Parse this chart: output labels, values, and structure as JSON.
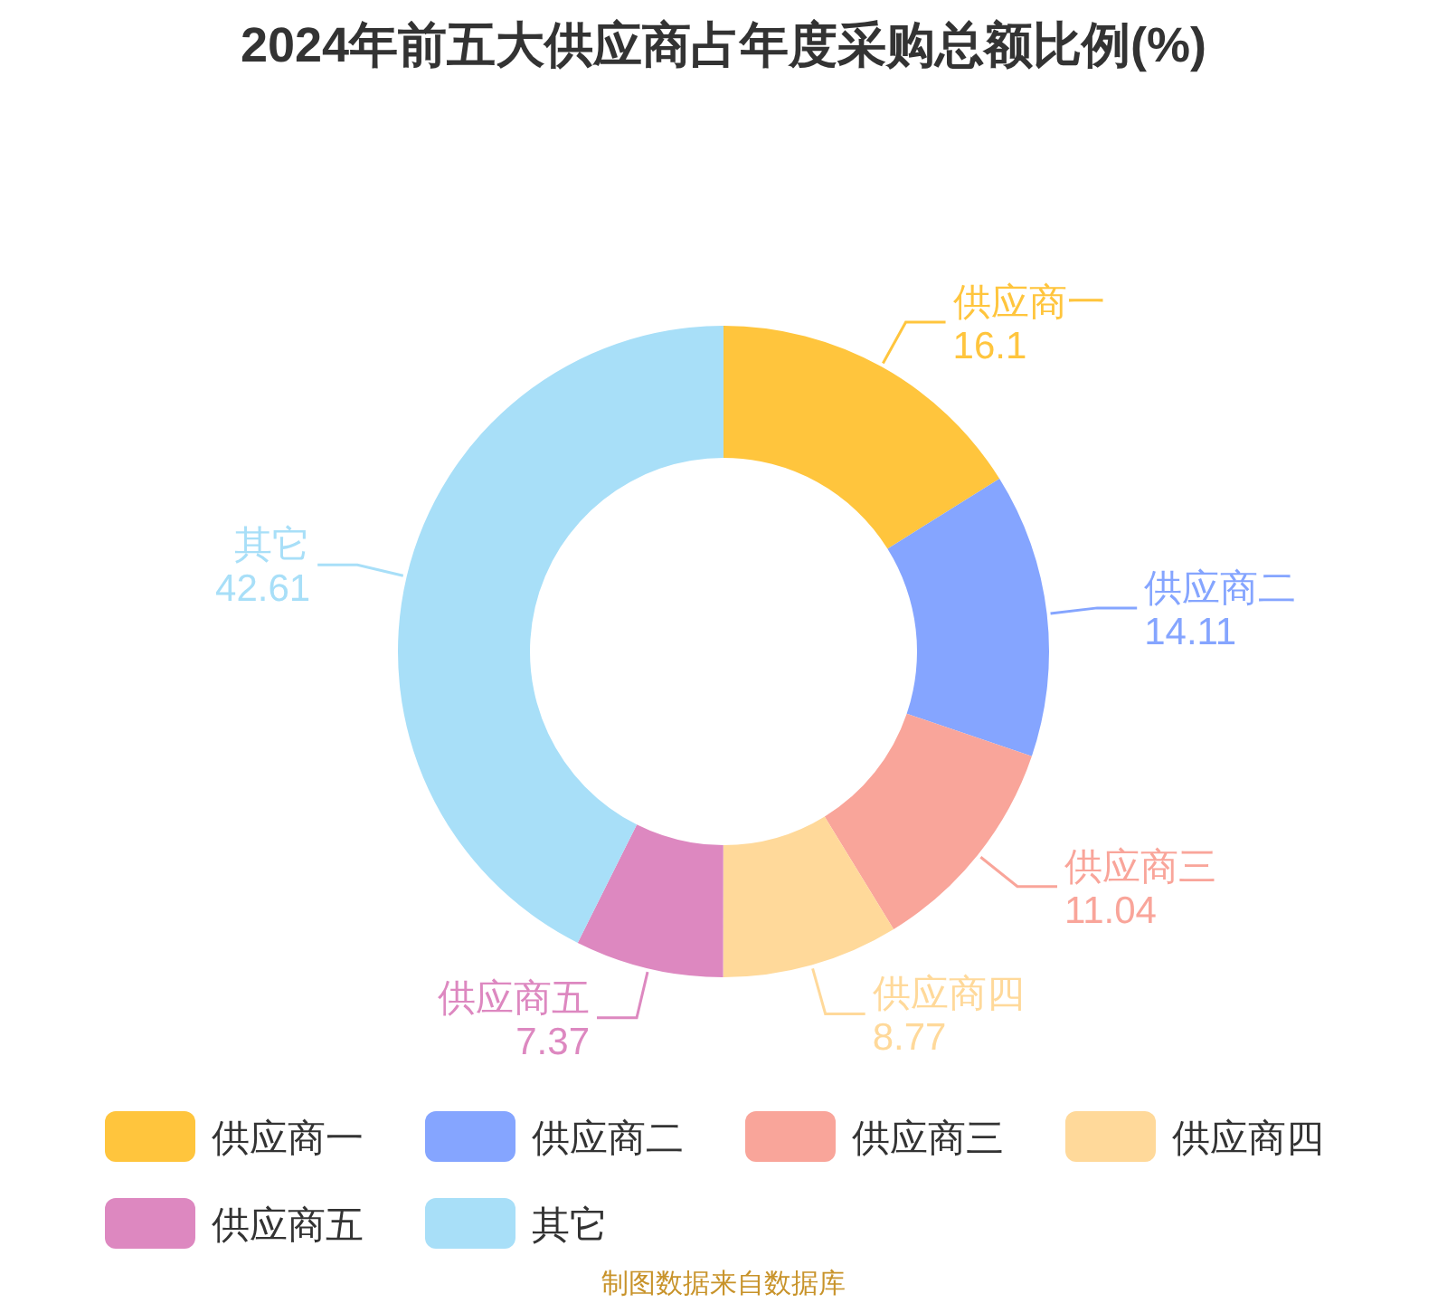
{
  "chart_data": {
    "type": "donut",
    "title": "2024年前五大供应商占年度采购总额比例(%)",
    "categories": [
      "供应商一",
      "供应商二",
      "供应商三",
      "供应商四",
      "供应商五",
      "其它"
    ],
    "values": [
      16.1,
      14.11,
      11.04,
      8.77,
      7.37,
      42.61
    ],
    "colors": [
      "#ffc53d",
      "#85a5ff",
      "#f9a59a",
      "#ffd99a",
      "#dd88c0",
      "#a8dff8"
    ],
    "data_labels": true,
    "legend": "bottom",
    "annotations": [
      "制图数据来自数据库"
    ]
  }
}
